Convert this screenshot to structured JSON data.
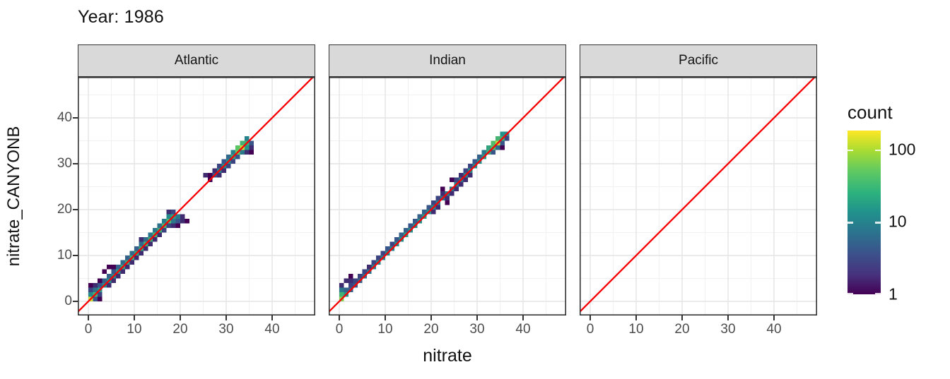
{
  "title": "Year: 1986",
  "axes": {
    "x_label": "nitrate",
    "y_label": "nitrate_CANYONB",
    "x_ticks": [
      0,
      10,
      20,
      30,
      40
    ],
    "y_ticks": [
      0,
      10,
      20,
      30,
      40
    ]
  },
  "legend": {
    "title": "count",
    "ticks": [
      100,
      10,
      1
    ]
  },
  "colors": {
    "reference_line": "#F80000",
    "strip_fill": "#d9d9d9",
    "panel_border": "#333333",
    "grid_major": "#e4e4e4",
    "grid_minor": "#f1f1f1",
    "axis_text": "#4d4d4d",
    "viridis_stops": [
      "#440154",
      "#3b528b",
      "#21918c",
      "#5ec962",
      "#fde725"
    ]
  },
  "chart_data": {
    "type": "heatmap",
    "subtype": "geom_bin2d faceted scatter-density",
    "title": "Year: 1986",
    "xlabel": "nitrate",
    "ylabel": "nitrate_CANYONB",
    "xlim": [
      -2.3,
      49.4
    ],
    "ylim": [
      -3.1,
      48.9
    ],
    "x_ticks": [
      0,
      10,
      20,
      30,
      40
    ],
    "y_ticks": [
      0,
      10,
      20,
      30,
      40
    ],
    "grid": "on",
    "legend_position": "right",
    "bin_width": 1,
    "reference_line": {
      "slope": 1,
      "intercept": 0,
      "color": "#F80000"
    },
    "fill_scale": {
      "name": "count",
      "palette": "viridis",
      "transform": "log10",
      "domain": [
        1,
        183
      ],
      "legend_ticks": [
        100,
        10,
        1
      ]
    },
    "facets": [
      {
        "label": "Atlantic",
        "bins": [
          [
            0.5,
            0.5,
            125
          ],
          [
            0.5,
            1.5,
            12
          ],
          [
            0.5,
            2.5,
            3
          ],
          [
            0.5,
            3.5,
            1
          ],
          [
            1.5,
            0.5,
            4
          ],
          [
            1.5,
            1.5,
            30
          ],
          [
            1.5,
            2.5,
            7
          ],
          [
            1.5,
            3.5,
            2
          ],
          [
            2.5,
            0.5,
            1
          ],
          [
            2.5,
            1.5,
            3
          ],
          [
            2.5,
            2.5,
            16
          ],
          [
            2.5,
            3.5,
            4
          ],
          [
            2.5,
            4.5,
            1
          ],
          [
            3.5,
            3.5,
            12
          ],
          [
            3.5,
            4.5,
            5
          ],
          [
            3.5,
            6.5,
            1
          ],
          [
            4.5,
            3.5,
            2
          ],
          [
            4.5,
            4.5,
            14
          ],
          [
            4.5,
            5.5,
            5
          ],
          [
            4.5,
            7.5,
            1
          ],
          [
            5.5,
            4.5,
            2
          ],
          [
            5.5,
            5.5,
            12
          ],
          [
            5.5,
            6.5,
            4
          ],
          [
            5.5,
            7.5,
            1
          ],
          [
            6.5,
            5.5,
            2
          ],
          [
            6.5,
            6.5,
            16
          ],
          [
            6.5,
            7.5,
            5
          ],
          [
            7.5,
            6.5,
            2
          ],
          [
            7.5,
            7.5,
            20
          ],
          [
            7.5,
            8.5,
            6
          ],
          [
            8.5,
            7.5,
            2
          ],
          [
            8.5,
            8.5,
            22
          ],
          [
            8.5,
            9.5,
            5
          ],
          [
            9.5,
            8.5,
            2
          ],
          [
            9.5,
            9.5,
            24
          ],
          [
            9.5,
            10.5,
            6
          ],
          [
            10.5,
            9.5,
            2
          ],
          [
            10.5,
            10.5,
            20
          ],
          [
            10.5,
            11.5,
            5
          ],
          [
            11.5,
            10.5,
            2
          ],
          [
            11.5,
            11.5,
            22
          ],
          [
            11.5,
            12.5,
            6
          ],
          [
            11.5,
            13.5,
            2
          ],
          [
            12.5,
            11.5,
            2
          ],
          [
            12.5,
            12.5,
            26
          ],
          [
            12.5,
            13.5,
            6
          ],
          [
            13.5,
            12.5,
            2
          ],
          [
            13.5,
            13.5,
            24
          ],
          [
            13.5,
            14.5,
            8
          ],
          [
            14.5,
            13.5,
            2
          ],
          [
            14.5,
            14.5,
            30
          ],
          [
            14.5,
            15.5,
            8
          ],
          [
            15.5,
            14.5,
            2
          ],
          [
            15.5,
            15.5,
            26
          ],
          [
            15.5,
            16.5,
            7
          ],
          [
            16.5,
            15.5,
            3
          ],
          [
            16.5,
            16.5,
            32
          ],
          [
            16.5,
            17.5,
            9
          ],
          [
            17.5,
            16.5,
            3
          ],
          [
            17.5,
            17.5,
            36
          ],
          [
            17.5,
            18.5,
            12
          ],
          [
            17.5,
            19.5,
            2
          ],
          [
            18.5,
            16.5,
            2
          ],
          [
            18.5,
            17.5,
            8
          ],
          [
            18.5,
            18.5,
            18
          ],
          [
            18.5,
            19.5,
            3
          ],
          [
            19.5,
            16.5,
            1
          ],
          [
            19.5,
            17.5,
            4
          ],
          [
            19.5,
            18.5,
            8
          ],
          [
            20.5,
            17.5,
            2
          ],
          [
            20.5,
            18.5,
            2
          ],
          [
            21.5,
            17.5,
            1
          ],
          [
            25.5,
            27.5,
            2
          ],
          [
            26.5,
            27.5,
            1
          ],
          [
            26.5,
            26.5,
            1
          ],
          [
            27.5,
            27.5,
            4
          ],
          [
            27.5,
            28.5,
            2
          ],
          [
            28.5,
            27.5,
            2
          ],
          [
            28.5,
            28.5,
            9
          ],
          [
            28.5,
            29.5,
            3
          ],
          [
            29.5,
            28.5,
            2
          ],
          [
            29.5,
            29.5,
            12
          ],
          [
            29.5,
            30.5,
            4
          ],
          [
            30.5,
            29.5,
            3
          ],
          [
            30.5,
            30.5,
            14
          ],
          [
            30.5,
            31.5,
            6
          ],
          [
            31.5,
            30.5,
            3
          ],
          [
            31.5,
            31.5,
            22
          ],
          [
            31.5,
            32.5,
            10
          ],
          [
            32.5,
            31.5,
            4
          ],
          [
            32.5,
            32.5,
            55
          ],
          [
            32.5,
            33.5,
            45
          ],
          [
            33.5,
            32.5,
            8
          ],
          [
            33.5,
            33.5,
            120
          ],
          [
            33.5,
            34.5,
            30
          ],
          [
            34.5,
            32.5,
            2
          ],
          [
            34.5,
            33.5,
            16
          ],
          [
            34.5,
            34.5,
            26
          ],
          [
            34.5,
            35.5,
            10
          ],
          [
            35.5,
            32.5,
            1
          ],
          [
            35.5,
            33.5,
            2
          ],
          [
            35.5,
            34.5,
            4
          ]
        ]
      },
      {
        "label": "Indian",
        "bins": [
          [
            0.5,
            0.5,
            70
          ],
          [
            0.5,
            1.5,
            28
          ],
          [
            0.5,
            2.5,
            8
          ],
          [
            0.5,
            3.5,
            2
          ],
          [
            1.5,
            1.5,
            14
          ],
          [
            1.5,
            2.5,
            5
          ],
          [
            1.5,
            4.5,
            2
          ],
          [
            2.5,
            2.5,
            5
          ],
          [
            2.5,
            3.5,
            3
          ],
          [
            2.5,
            4.5,
            2
          ],
          [
            2.5,
            5.5,
            1
          ],
          [
            3.5,
            3.5,
            4
          ],
          [
            3.5,
            4.5,
            3
          ],
          [
            4.5,
            4.5,
            5
          ],
          [
            4.5,
            5.5,
            3
          ],
          [
            5.5,
            5.5,
            6
          ],
          [
            5.5,
            6.5,
            3
          ],
          [
            6.5,
            6.5,
            7
          ],
          [
            6.5,
            7.5,
            2
          ],
          [
            7.5,
            7.5,
            9
          ],
          [
            7.5,
            8.5,
            3
          ],
          [
            8.5,
            8.5,
            11
          ],
          [
            8.5,
            9.5,
            3
          ],
          [
            9.5,
            9.5,
            9
          ],
          [
            9.5,
            10.5,
            3
          ],
          [
            10.5,
            10.5,
            11
          ],
          [
            10.5,
            11.5,
            4
          ],
          [
            11.5,
            11.5,
            9
          ],
          [
            11.5,
            12.5,
            3
          ],
          [
            12.5,
            12.5,
            11
          ],
          [
            12.5,
            13.5,
            4
          ],
          [
            13.5,
            13.5,
            13
          ],
          [
            13.5,
            14.5,
            5
          ],
          [
            14.5,
            14.5,
            16
          ],
          [
            14.5,
            15.5,
            5
          ],
          [
            15.5,
            15.5,
            13
          ],
          [
            15.5,
            16.5,
            4
          ],
          [
            16.5,
            16.5,
            11
          ],
          [
            16.5,
            17.5,
            4
          ],
          [
            17.5,
            17.5,
            13
          ],
          [
            17.5,
            18.5,
            5
          ],
          [
            18.5,
            18.5,
            16
          ],
          [
            18.5,
            19.5,
            5
          ],
          [
            19.5,
            19.5,
            13
          ],
          [
            19.5,
            20.5,
            4
          ],
          [
            20.5,
            19.5,
            2
          ],
          [
            20.5,
            20.5,
            11
          ],
          [
            20.5,
            21.5,
            3
          ],
          [
            21.5,
            20.5,
            2
          ],
          [
            21.5,
            21.5,
            9
          ],
          [
            21.5,
            22.5,
            3
          ],
          [
            22.5,
            22.5,
            7
          ],
          [
            22.5,
            23.5,
            2
          ],
          [
            22.5,
            24.5,
            1
          ],
          [
            23.5,
            21.5,
            1
          ],
          [
            23.5,
            22.5,
            2
          ],
          [
            23.5,
            23.5,
            9
          ],
          [
            24.5,
            23.5,
            2
          ],
          [
            24.5,
            24.5,
            7
          ],
          [
            24.5,
            26.5,
            1
          ],
          [
            25.5,
            24.5,
            2
          ],
          [
            25.5,
            25.5,
            9
          ],
          [
            25.5,
            26.5,
            3
          ],
          [
            26.5,
            25.5,
            2
          ],
          [
            26.5,
            26.5,
            7
          ],
          [
            26.5,
            27.5,
            2
          ],
          [
            27.5,
            26.5,
            2
          ],
          [
            27.5,
            27.5,
            9
          ],
          [
            27.5,
            28.5,
            3
          ],
          [
            28.5,
            27.5,
            2
          ],
          [
            28.5,
            28.5,
            11
          ],
          [
            28.5,
            29.5,
            3
          ],
          [
            29.5,
            29.5,
            11
          ],
          [
            29.5,
            30.5,
            4
          ],
          [
            30.5,
            30.5,
            13
          ],
          [
            30.5,
            31.5,
            5
          ],
          [
            31.5,
            31.5,
            16
          ],
          [
            31.5,
            32.5,
            8
          ],
          [
            32.5,
            32.5,
            26
          ],
          [
            32.5,
            33.5,
            20
          ],
          [
            33.5,
            32.5,
            4
          ],
          [
            33.5,
            33.5,
            42
          ],
          [
            33.5,
            34.5,
            38
          ],
          [
            34.5,
            33.5,
            6
          ],
          [
            34.5,
            34.5,
            115
          ],
          [
            34.5,
            35.5,
            30
          ],
          [
            35.5,
            33.5,
            1
          ],
          [
            35.5,
            34.5,
            4
          ],
          [
            35.5,
            35.5,
            26
          ],
          [
            35.5,
            36.5,
            14
          ],
          [
            36.5,
            35.5,
            3
          ],
          [
            36.5,
            36.5,
            10
          ]
        ]
      },
      {
        "label": "Pacific",
        "bins": []
      }
    ]
  }
}
